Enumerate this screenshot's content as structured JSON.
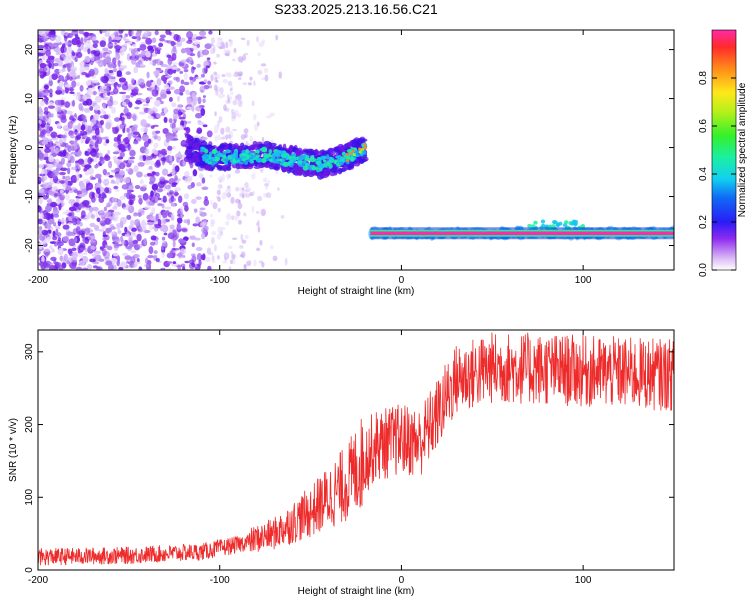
{
  "title": "S233.2025.213.16.56.C21",
  "chart_data": [
    {
      "type": "heatmap",
      "xlabel": "Height of straight line (km)",
      "ylabel": "Frequency (Hz)",
      "xlim": [
        -200,
        150
      ],
      "ylim": [
        -25,
        24
      ],
      "xticks": [
        -200,
        -100,
        0,
        100
      ],
      "yticks": [
        -20,
        -10,
        0,
        10,
        20
      ],
      "colorbar": {
        "label": "Normalized spectral amplitude",
        "range": [
          0,
          1
        ],
        "ticks": [
          "0.0",
          "0.2",
          "0.4",
          "0.6",
          "0.8"
        ]
      },
      "features": [
        {
          "kind": "noise-scatter",
          "x_range": [
            -200,
            -105
          ],
          "y_range": [
            -25,
            24
          ]
        },
        {
          "kind": "faint-noise",
          "x_range": [
            -105,
            -60
          ],
          "y_range": [
            -25,
            24
          ]
        },
        {
          "kind": "curved-trace",
          "points": [
            [
              -118,
              0
            ],
            [
              -105,
              -2
            ],
            [
              -90,
              -2
            ],
            [
              -75,
              -1.5
            ],
            [
              -60,
              -2.5
            ],
            [
              -45,
              -3.5
            ],
            [
              -30,
              -2
            ],
            [
              -20,
              0
            ]
          ]
        },
        {
          "kind": "flat-trace",
          "x_range": [
            -17,
            150
          ],
          "y": -17.5
        }
      ]
    },
    {
      "type": "line",
      "xlabel": "Height of straight line (km)",
      "ylabel": "SNR (10 * v/v)",
      "xlim": [
        -200,
        150
      ],
      "ylim": [
        0,
        330
      ],
      "xticks": [
        -200,
        -100,
        0,
        100
      ],
      "yticks": [
        0,
        100,
        200,
        300
      ],
      "color": "#ee2a2a",
      "envelope": [
        [
          -200,
          18
        ],
        [
          -150,
          20
        ],
        [
          -110,
          25
        ],
        [
          -90,
          35
        ],
        [
          -70,
          50
        ],
        [
          -50,
          80
        ],
        [
          -30,
          120
        ],
        [
          -15,
          170
        ],
        [
          0,
          180
        ],
        [
          10,
          175
        ],
        [
          20,
          215
        ],
        [
          30,
          262
        ],
        [
          50,
          278
        ],
        [
          80,
          276
        ],
        [
          110,
          272
        ],
        [
          130,
          270
        ],
        [
          150,
          268
        ]
      ]
    }
  ]
}
